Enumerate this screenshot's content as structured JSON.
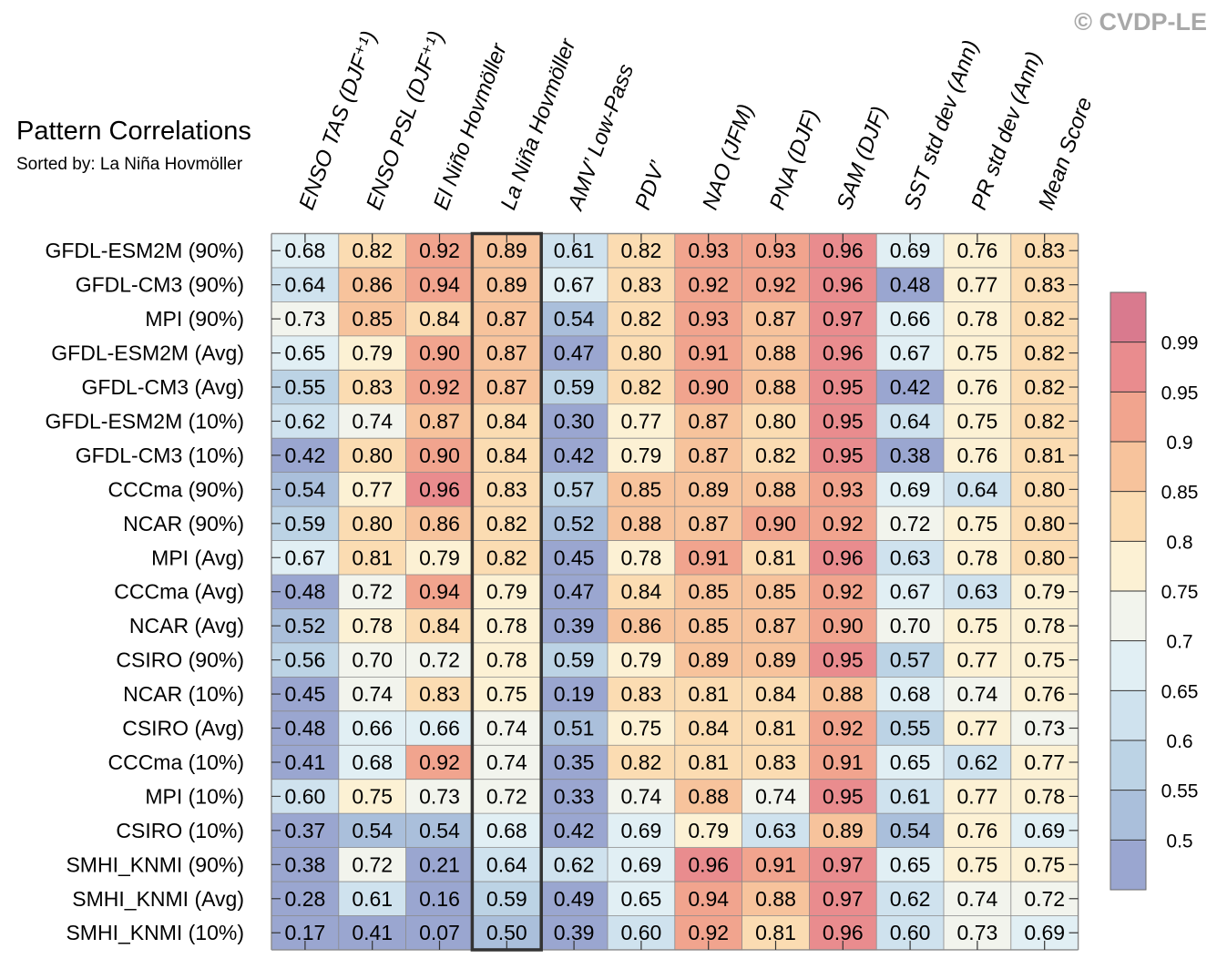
{
  "copyright": "© CVDP-LE",
  "chart_data": {
    "type": "heatmap",
    "title": "Pattern Correlations",
    "subtitle": "Sorted by: La Niña Hovmöller",
    "columns": [
      "ENSO TAS (DJF⁺¹)",
      "ENSO PSL (DJF⁺¹)",
      "El Niño Hovmöller",
      "La Niña Hovmöller",
      "AMV’ Low-Pass",
      "PDV’",
      "NAO (JFM)",
      "PNA (DJF)",
      "SAM (DJF)",
      "SST std dev (Ann)",
      "PR std dev (Ann)",
      "Mean Score"
    ],
    "rows": [
      "GFDL-ESM2M (90%)",
      "GFDL-CM3 (90%)",
      "MPI (90%)",
      "GFDL-ESM2M (Avg)",
      "GFDL-CM3 (Avg)",
      "GFDL-ESM2M (10%)",
      "GFDL-CM3 (10%)",
      "CCCma (90%)",
      "NCAR (90%)",
      "MPI (Avg)",
      "CCCma (Avg)",
      "NCAR (Avg)",
      "CSIRO (90%)",
      "NCAR (10%)",
      "CSIRO (Avg)",
      "CCCma (10%)",
      "MPI (10%)",
      "CSIRO (10%)",
      "SMHI_KNMI (90%)",
      "SMHI_KNMI (Avg)",
      "SMHI_KNMI (10%)"
    ],
    "values": [
      [
        "0.68",
        "0.82",
        "0.92",
        "0.89",
        "0.61",
        "0.82",
        "0.93",
        "0.93",
        "0.96",
        "0.69",
        "0.76",
        "0.83"
      ],
      [
        "0.64",
        "0.86",
        "0.94",
        "0.89",
        "0.67",
        "0.83",
        "0.92",
        "0.92",
        "0.96",
        "0.48",
        "0.77",
        "0.83"
      ],
      [
        "0.73",
        "0.85",
        "0.84",
        "0.87",
        "0.54",
        "0.82",
        "0.93",
        "0.87",
        "0.97",
        "0.66",
        "0.78",
        "0.82"
      ],
      [
        "0.65",
        "0.79",
        "0.90",
        "0.87",
        "0.47",
        "0.80",
        "0.91",
        "0.88",
        "0.96",
        "0.67",
        "0.75",
        "0.82"
      ],
      [
        "0.55",
        "0.83",
        "0.92",
        "0.87",
        "0.59",
        "0.82",
        "0.90",
        "0.88",
        "0.95",
        "0.42",
        "0.76",
        "0.82"
      ],
      [
        "0.62",
        "0.74",
        "0.87",
        "0.84",
        "0.30",
        "0.77",
        "0.87",
        "0.80",
        "0.95",
        "0.64",
        "0.75",
        "0.82"
      ],
      [
        "0.42",
        "0.80",
        "0.90",
        "0.84",
        "0.42",
        "0.79",
        "0.87",
        "0.82",
        "0.95",
        "0.38",
        "0.76",
        "0.81"
      ],
      [
        "0.54",
        "0.77",
        "0.96",
        "0.83",
        "0.57",
        "0.85",
        "0.89",
        "0.88",
        "0.93",
        "0.69",
        "0.64",
        "0.80"
      ],
      [
        "0.59",
        "0.80",
        "0.86",
        "0.82",
        "0.52",
        "0.88",
        "0.87",
        "0.90",
        "0.92",
        "0.72",
        "0.75",
        "0.80"
      ],
      [
        "0.67",
        "0.81",
        "0.79",
        "0.82",
        "0.45",
        "0.78",
        "0.91",
        "0.81",
        "0.96",
        "0.63",
        "0.78",
        "0.80"
      ],
      [
        "0.48",
        "0.72",
        "0.94",
        "0.79",
        "0.47",
        "0.84",
        "0.85",
        "0.85",
        "0.92",
        "0.67",
        "0.63",
        "0.79"
      ],
      [
        "0.52",
        "0.78",
        "0.84",
        "0.78",
        "0.39",
        "0.86",
        "0.85",
        "0.87",
        "0.90",
        "0.70",
        "0.75",
        "0.78"
      ],
      [
        "0.56",
        "0.70",
        "0.72",
        "0.78",
        "0.59",
        "0.79",
        "0.89",
        "0.89",
        "0.95",
        "0.57",
        "0.77",
        "0.75"
      ],
      [
        "0.45",
        "0.74",
        "0.83",
        "0.75",
        "0.19",
        "0.83",
        "0.81",
        "0.84",
        "0.88",
        "0.68",
        "0.74",
        "0.76"
      ],
      [
        "0.48",
        "0.66",
        "0.66",
        "0.74",
        "0.51",
        "0.75",
        "0.84",
        "0.81",
        "0.92",
        "0.55",
        "0.77",
        "0.73"
      ],
      [
        "0.41",
        "0.68",
        "0.92",
        "0.74",
        "0.35",
        "0.82",
        "0.81",
        "0.83",
        "0.91",
        "0.65",
        "0.62",
        "0.77"
      ],
      [
        "0.60",
        "0.75",
        "0.73",
        "0.72",
        "0.33",
        "0.74",
        "0.88",
        "0.74",
        "0.95",
        "0.61",
        "0.77",
        "0.78"
      ],
      [
        "0.37",
        "0.54",
        "0.54",
        "0.68",
        "0.42",
        "0.69",
        "0.79",
        "0.63",
        "0.89",
        "0.54",
        "0.76",
        "0.69"
      ],
      [
        "0.38",
        "0.72",
        "0.21",
        "0.64",
        "0.62",
        "0.69",
        "0.96",
        "0.91",
        "0.97",
        "0.65",
        "0.75",
        "0.75"
      ],
      [
        "0.28",
        "0.61",
        "0.16",
        "0.59",
        "0.49",
        "0.65",
        "0.94",
        "0.88",
        "0.97",
        "0.62",
        "0.74",
        "0.72"
      ],
      [
        "0.17",
        "0.41",
        "0.07",
        "0.50",
        "0.39",
        "0.60",
        "0.92",
        "0.81",
        "0.96",
        "0.60",
        "0.73",
        "0.69"
      ]
    ],
    "highlighted_column": "La Niña Hovmöller",
    "colorbar": {
      "labels": [
        "0.99",
        "0.95",
        "0.9",
        "0.85",
        "0.8",
        "0.75",
        "0.7",
        "0.65",
        "0.6",
        "0.55",
        "0.5"
      ],
      "levels": [
        0.5,
        0.55,
        0.6,
        0.65,
        0.7,
        0.75,
        0.8,
        0.85,
        0.9,
        0.95,
        0.99
      ],
      "colors": [
        "#9aa6d0",
        "#aabfdb",
        "#bcd3e5",
        "#cfe2ee",
        "#e1eff4",
        "#f2f4ed",
        "#fcf1d4",
        "#fbdcb2",
        "#f7c39c",
        "#f1a48e",
        "#e98c8e",
        "#d97a8e"
      ],
      "placement": "right"
    }
  }
}
